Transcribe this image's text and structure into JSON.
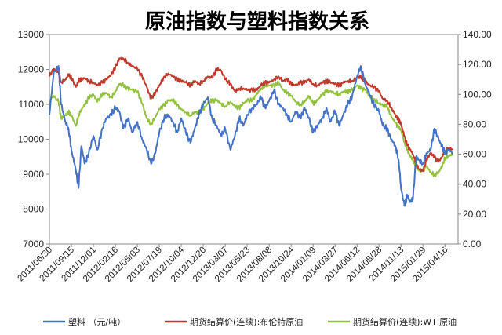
{
  "chart_data": {
    "type": "line",
    "title": "原油指数与塑料指数关系",
    "y_left": {
      "min": 7000,
      "max": 13000,
      "step": 1000,
      "ticks": [
        "7000",
        "8000",
        "9000",
        "10000",
        "11000",
        "12000",
        "13000"
      ]
    },
    "y_right": {
      "min": 0,
      "max": 140,
      "step": 20,
      "ticks": [
        "0.00",
        "20.00",
        "40.00",
        "60.00",
        "80.00",
        "100.00",
        "120.00",
        "140.00"
      ]
    },
    "x_ticks": [
      "2011/06/30",
      "2011/09/15",
      "2011/12/01",
      "2012/02/16",
      "2012/05/03",
      "2012/07/19",
      "2012/10/04",
      "2012/12/20",
      "2013/03/07",
      "2013/05/23",
      "2013/08/08",
      "2013/10/24",
      "2014/01/09",
      "2014/03/27",
      "2014/06/12",
      "2014/08/28",
      "2014/11/13",
      "2015/01/29",
      "2015/04/16"
    ],
    "legend_position": "bottom",
    "series": [
      {
        "name": "塑料 （元/吨）",
        "axis": "left",
        "color": "#4472C4",
        "x": [
          "2011/06/30",
          "2011/07/15",
          "2011/08/01",
          "2011/08/10",
          "2011/08/25",
          "2011/09/05",
          "2011/09/15",
          "2011/10/01",
          "2011/10/10",
          "2011/10/20",
          "2011/11/01",
          "2011/11/15",
          "2011/12/01",
          "2011/12/15",
          "2012/01/01",
          "2012/01/15",
          "2012/02/01",
          "2012/02/16",
          "2012/03/01",
          "2012/03/15",
          "2012/04/01",
          "2012/04/15",
          "2012/05/03",
          "2012/05/20",
          "2012/06/05",
          "2012/06/20",
          "2012/07/05",
          "2012/07/19",
          "2012/08/05",
          "2012/08/20",
          "2012/09/05",
          "2012/09/20",
          "2012/10/04",
          "2012/10/20",
          "2012/11/05",
          "2012/11/20",
          "2012/12/05",
          "2012/12/20",
          "2013/01/05",
          "2013/01/20",
          "2013/02/05",
          "2013/02/20",
          "2013/03/07",
          "2013/03/25",
          "2013/04/10",
          "2013/04/25",
          "2013/05/10",
          "2013/05/23",
          "2013/06/10",
          "2013/06/25",
          "2013/07/10",
          "2013/07/25",
          "2013/08/08",
          "2013/08/25",
          "2013/09/10",
          "2013/09/25",
          "2013/10/10",
          "2013/10/24",
          "2013/11/10",
          "2013/11/25",
          "2013/12/10",
          "2013/12/25",
          "2014/01/09",
          "2014/01/25",
          "2014/02/10",
          "2014/02/25",
          "2014/03/10",
          "2014/03/27",
          "2014/04/10",
          "2014/04/25",
          "2014/05/10",
          "2014/05/25",
          "2014/06/12",
          "2014/06/25",
          "2014/07/10",
          "2014/07/25",
          "2014/08/10",
          "2014/08/28",
          "2014/09/10",
          "2014/09/25",
          "2014/10/10",
          "2014/10/25",
          "2014/11/05",
          "2014/11/13",
          "2014/11/25",
          "2014/12/05",
          "2014/12/15",
          "2014/12/25",
          "2015/01/05",
          "2015/01/15",
          "2015/01/29",
          "2015/02/10",
          "2015/02/25",
          "2015/03/10",
          "2015/03/25",
          "2015/04/05",
          "2015/04/16",
          "2015/04/30",
          "2015/05/15"
        ],
        "y": [
          10700,
          11900,
          12100,
          11000,
          10500,
          10300,
          9700,
          9100,
          8600,
          9800,
          9300,
          9600,
          10100,
          9700,
          10300,
          10600,
          10700,
          10900,
          10800,
          10300,
          10600,
          10200,
          10500,
          10000,
          9700,
          9300,
          9600,
          10200,
          10600,
          10700,
          10500,
          10200,
          10600,
          10200,
          9900,
          10300,
          10700,
          11000,
          11200,
          10600,
          10400,
          10100,
          10300,
          9700,
          10100,
          10600,
          10400,
          10700,
          10900,
          11000,
          11200,
          10900,
          11100,
          11400,
          11000,
          10900,
          10700,
          10500,
          10800,
          10600,
          10900,
          10600,
          10200,
          10400,
          10600,
          10900,
          10500,
          10800,
          10400,
          10700,
          11000,
          11200,
          11800,
          12100,
          11600,
          11300,
          11000,
          10800,
          10400,
          10300,
          10000,
          9800,
          9400,
          8600,
          8100,
          8400,
          8200,
          8300,
          9500,
          9400,
          9300,
          9600,
          9700,
          10300,
          10000,
          9800,
          9600,
          9700,
          9600
        ]
      },
      {
        "name": "期货结算价(连续):布伦特原油",
        "axis": "right",
        "color": "#C0392B",
        "x": [
          "2011/06/30",
          "2011/07/15",
          "2011/08/01",
          "2011/08/10",
          "2011/08/25",
          "2011/09/05",
          "2011/09/15",
          "2011/10/01",
          "2011/10/10",
          "2011/10/20",
          "2011/11/01",
          "2011/11/15",
          "2011/12/01",
          "2011/12/15",
          "2012/01/01",
          "2012/01/15",
          "2012/02/01",
          "2012/02/16",
          "2012/03/01",
          "2012/03/15",
          "2012/04/01",
          "2012/04/15",
          "2012/05/03",
          "2012/05/20",
          "2012/06/05",
          "2012/06/20",
          "2012/07/05",
          "2012/07/19",
          "2012/08/05",
          "2012/08/20",
          "2012/09/05",
          "2012/09/20",
          "2012/10/04",
          "2012/10/20",
          "2012/11/05",
          "2012/11/20",
          "2012/12/05",
          "2012/12/20",
          "2013/01/05",
          "2013/01/20",
          "2013/02/05",
          "2013/02/20",
          "2013/03/07",
          "2013/03/25",
          "2013/04/10",
          "2013/04/25",
          "2013/05/10",
          "2013/05/23",
          "2013/06/10",
          "2013/06/25",
          "2013/07/10",
          "2013/07/25",
          "2013/08/08",
          "2013/08/25",
          "2013/09/10",
          "2013/09/25",
          "2013/10/10",
          "2013/10/24",
          "2013/11/10",
          "2013/11/25",
          "2013/12/10",
          "2013/12/25",
          "2014/01/09",
          "2014/01/25",
          "2014/02/10",
          "2014/02/25",
          "2014/03/10",
          "2014/03/27",
          "2014/04/10",
          "2014/04/25",
          "2014/05/10",
          "2014/05/25",
          "2014/06/12",
          "2014/06/25",
          "2014/07/10",
          "2014/07/25",
          "2014/08/10",
          "2014/08/28",
          "2014/09/10",
          "2014/09/25",
          "2014/10/10",
          "2014/10/25",
          "2014/11/05",
          "2014/11/13",
          "2014/11/25",
          "2014/12/05",
          "2014/12/15",
          "2014/12/25",
          "2015/01/05",
          "2015/01/15",
          "2015/01/29",
          "2015/02/10",
          "2015/02/25",
          "2015/03/10",
          "2015/03/25",
          "2015/04/05",
          "2015/04/16",
          "2015/04/30",
          "2015/05/15"
        ],
        "y": [
          112,
          117,
          115,
          108,
          110,
          113,
          111,
          105,
          109,
          110,
          111,
          109,
          108,
          106,
          108,
          110,
          113,
          118,
          124,
          124,
          121,
          119,
          117,
          112,
          105,
          97,
          101,
          106,
          112,
          114,
          112,
          110,
          109,
          108,
          106,
          109,
          107,
          109,
          112,
          111,
          117,
          116,
          110,
          107,
          102,
          104,
          104,
          103,
          103,
          103,
          106,
          108,
          108,
          110,
          112,
          109,
          110,
          107,
          106,
          108,
          108,
          110,
          107,
          106,
          108,
          109,
          108,
          107,
          106,
          108,
          109,
          109,
          111,
          112,
          109,
          106,
          105,
          102,
          97,
          96,
          91,
          86,
          83,
          80,
          72,
          66,
          63,
          60,
          54,
          50,
          49,
          56,
          61,
          58,
          55,
          58,
          62,
          64,
          63
        ]
      },
      {
        "name": "期货结算价(连续):WTI原油",
        "axis": "right",
        "color": "#92C13D",
        "x": [
          "2011/06/30",
          "2011/07/15",
          "2011/08/01",
          "2011/08/10",
          "2011/08/25",
          "2011/09/05",
          "2011/09/15",
          "2011/10/01",
          "2011/10/10",
          "2011/10/20",
          "2011/11/01",
          "2011/11/15",
          "2011/12/01",
          "2011/12/15",
          "2012/01/01",
          "2012/01/15",
          "2012/02/01",
          "2012/02/16",
          "2012/03/01",
          "2012/03/15",
          "2012/04/01",
          "2012/04/15",
          "2012/05/03",
          "2012/05/20",
          "2012/06/05",
          "2012/06/20",
          "2012/07/05",
          "2012/07/19",
          "2012/08/05",
          "2012/08/20",
          "2012/09/05",
          "2012/09/20",
          "2012/10/04",
          "2012/10/20",
          "2012/11/05",
          "2012/11/20",
          "2012/12/05",
          "2012/12/20",
          "2013/01/05",
          "2013/01/20",
          "2013/02/05",
          "2013/02/20",
          "2013/03/07",
          "2013/03/25",
          "2013/04/10",
          "2013/04/25",
          "2013/05/10",
          "2013/05/23",
          "2013/06/10",
          "2013/06/25",
          "2013/07/10",
          "2013/07/25",
          "2013/08/08",
          "2013/08/25",
          "2013/09/10",
          "2013/09/25",
          "2013/10/10",
          "2013/10/24",
          "2013/11/10",
          "2013/11/25",
          "2013/12/10",
          "2013/12/25",
          "2014/01/09",
          "2014/01/25",
          "2014/02/10",
          "2014/02/25",
          "2014/03/10",
          "2014/03/27",
          "2014/04/10",
          "2014/04/25",
          "2014/05/10",
          "2014/05/25",
          "2014/06/12",
          "2014/06/25",
          "2014/07/10",
          "2014/07/25",
          "2014/08/10",
          "2014/08/28",
          "2014/09/10",
          "2014/09/25",
          "2014/10/10",
          "2014/10/25",
          "2014/11/05",
          "2014/11/13",
          "2014/11/25",
          "2014/12/05",
          "2014/12/15",
          "2014/12/25",
          "2015/01/05",
          "2015/01/15",
          "2015/01/29",
          "2015/02/10",
          "2015/02/25",
          "2015/03/10",
          "2015/03/25",
          "2015/04/05",
          "2015/04/16",
          "2015/04/30",
          "2015/05/15"
        ],
        "y": [
          96,
          99,
          95,
          84,
          86,
          88,
          86,
          79,
          86,
          90,
          93,
          98,
          100,
          95,
          100,
          101,
          98,
          102,
          107,
          106,
          104,
          103,
          102,
          94,
          84,
          80,
          85,
          90,
          93,
          96,
          96,
          93,
          90,
          88,
          86,
          88,
          88,
          90,
          94,
          96,
          96,
          94,
          92,
          95,
          92,
          91,
          94,
          96,
          96,
          100,
          104,
          106,
          106,
          106,
          108,
          103,
          101,
          99,
          95,
          93,
          95,
          99,
          94,
          96,
          100,
          102,
          102,
          101,
          100,
          102,
          102,
          103,
          106,
          104,
          103,
          99,
          97,
          94,
          93,
          92,
          85,
          81,
          78,
          76,
          68,
          63,
          59,
          56,
          52,
          49,
          49,
          52,
          48,
          46,
          48,
          52,
          57,
          59,
          60
        ]
      }
    ]
  }
}
